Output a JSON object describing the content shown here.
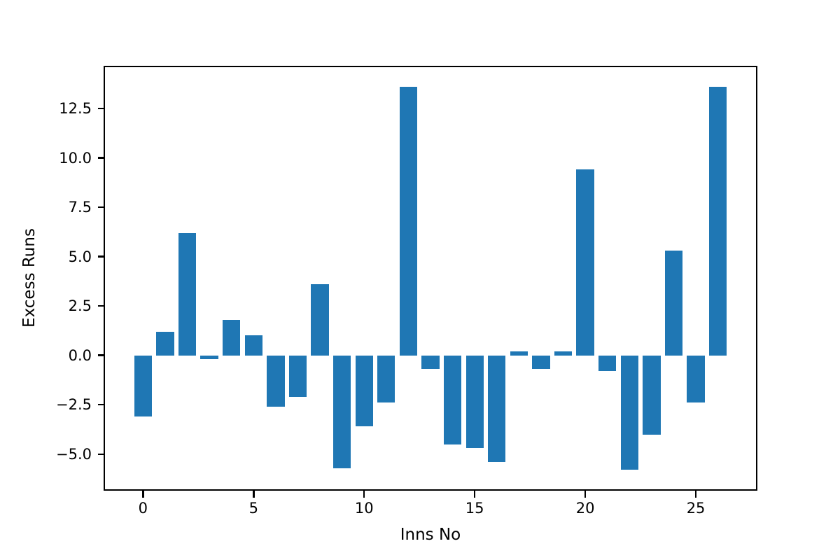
{
  "chart_data": {
    "type": "bar",
    "title": "",
    "xlabel": "Inns No",
    "ylabel": "Excess Runs",
    "x": [
      0,
      1,
      2,
      3,
      4,
      5,
      6,
      7,
      8,
      9,
      10,
      11,
      12,
      13,
      14,
      15,
      16,
      17,
      18,
      19,
      20,
      21,
      22,
      23,
      24,
      25,
      26
    ],
    "values": [
      -3.1,
      1.2,
      6.2,
      -0.2,
      1.8,
      1.0,
      -2.6,
      -2.1,
      3.6,
      -5.7,
      -3.6,
      -2.4,
      13.6,
      -0.7,
      -4.5,
      -4.7,
      -5.4,
      0.2,
      -0.7,
      0.2,
      9.4,
      -0.8,
      -5.8,
      -4.0,
      5.3,
      -2.4,
      13.6
    ],
    "bar_width": 0.8,
    "bar_color": "#1f77b4",
    "axis_color": "#000000",
    "background_color": "#ffffff",
    "xlim": [
      -1.72,
      27.72
    ],
    "ylim": [
      -6.78,
      14.59
    ],
    "xticks": [
      0,
      5,
      10,
      15,
      20,
      25
    ],
    "xtick_labels": [
      "0",
      "5",
      "10",
      "15",
      "20",
      "25"
    ],
    "yticks": [
      -5.0,
      -2.5,
      0.0,
      2.5,
      5.0,
      7.5,
      10.0,
      12.5
    ],
    "ytick_labels": [
      "−5.0",
      "−2.5",
      "0.0",
      "2.5",
      "5.0",
      "7.5",
      "10.0",
      "12.5"
    ],
    "grid": false,
    "legend": null
  }
}
